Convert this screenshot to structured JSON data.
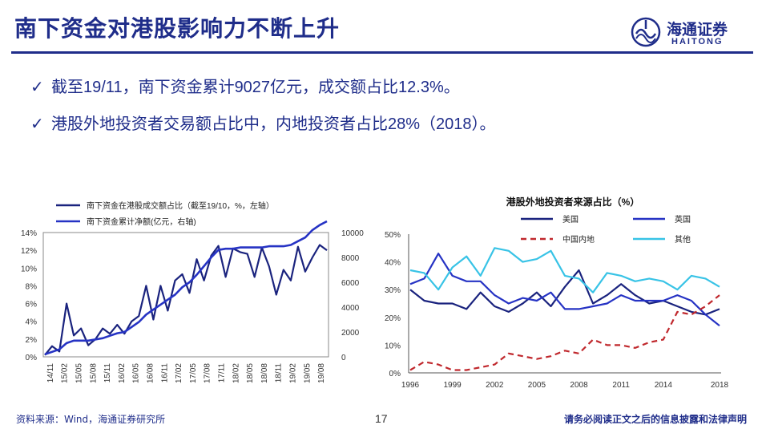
{
  "header": {
    "title": "南下资金对港股影响力不断上升",
    "logo_cn": "海通证券",
    "logo_en": "HAITONG"
  },
  "bullets": [
    {
      "mark": "✓",
      "text": "截至19/11，南下资金累计9027亿元，成交额占比12.3%。"
    },
    {
      "mark": "✓",
      "text": "港股外地投资者交易额占比中，内地投资者占比28%（2018）。"
    }
  ],
  "footer": {
    "source": "资料来源：Wind，海通证券研究所",
    "page": "17",
    "disclaimer": "请务必阅读正文之后的信息披露和法律声明"
  },
  "colors": {
    "brand": "#1f2d8a",
    "navy": "#1a237e",
    "blue": "#2633c4",
    "red": "#c0282d",
    "cyan": "#38c3e6"
  },
  "chart_data": [
    {
      "type": "line",
      "title": "",
      "x_ticks": [
        "14/11",
        "15/02",
        "15/05",
        "15/08",
        "15/11",
        "16/02",
        "16/05",
        "16/08",
        "16/11",
        "17/02",
        "17/05",
        "17/08",
        "17/11",
        "18/02",
        "18/05",
        "18/08",
        "18/11",
        "19/02",
        "19/05",
        "19/08"
      ],
      "y_left_ticks": [
        "0%",
        "2%",
        "4%",
        "6%",
        "8%",
        "10%",
        "12%",
        "14%"
      ],
      "y_right_ticks": [
        "0",
        "2000",
        "4000",
        "6000",
        "8000",
        "10000"
      ],
      "ylim_left": [
        0,
        14
      ],
      "ylim_right": [
        0,
        10000
      ],
      "legend_position": "top",
      "grid": false,
      "series": [
        {
          "name": "南下资金在港股成交额占比（截至19/10，%，左轴）",
          "axis": "left",
          "color": "#1a237e",
          "values": [
            0.2,
            1.2,
            0.6,
            6.0,
            2.4,
            3.2,
            1.3,
            2.0,
            3.2,
            2.6,
            3.6,
            2.6,
            4.0,
            4.6,
            8.0,
            4.2,
            8.0,
            5.2,
            8.6,
            9.3,
            7.2,
            11.0,
            8.6,
            11.4,
            12.5,
            9.0,
            12.2,
            11.8,
            11.6,
            9.0,
            12.3,
            10.2,
            7.0,
            9.8,
            8.6,
            12.4,
            9.6,
            11.2,
            12.6,
            12.0
          ]
        },
        {
          "name": "南下资金累计净额(亿元，右轴)",
          "axis": "right",
          "color": "#2633c4",
          "values": [
            200,
            400,
            600,
            1100,
            1300,
            1300,
            1300,
            1400,
            1500,
            1700,
            1900,
            2000,
            2400,
            2800,
            3400,
            3800,
            4200,
            4600,
            5000,
            5600,
            6000,
            6600,
            7300,
            8000,
            8600,
            8700,
            8700,
            8800,
            8800,
            8800,
            8800,
            8900,
            8900,
            8900,
            9000,
            9300,
            9600,
            10200,
            10600,
            10900
          ]
        }
      ]
    },
    {
      "type": "line",
      "title": "港股外地投资者来源占比（%）",
      "x": [
        1996,
        1997,
        1998,
        1999,
        2000,
        2001,
        2002,
        2003,
        2004,
        2005,
        2006,
        2007,
        2008,
        2009,
        2010,
        2011,
        2012,
        2013,
        2014,
        2015,
        2016,
        2017,
        2018
      ],
      "x_ticks": [
        "1996",
        "1999",
        "2002",
        "2005",
        "2008",
        "2011",
        "2014",
        "2018"
      ],
      "y_ticks": [
        "0%",
        "10%",
        "20%",
        "30%",
        "40%",
        "50%"
      ],
      "ylim": [
        0,
        50
      ],
      "legend_position": "top",
      "grid": false,
      "series": [
        {
          "name": "美国",
          "color": "#1a237e",
          "style": "solid",
          "values": [
            30,
            26,
            25,
            25,
            23,
            29,
            24,
            22,
            25,
            29,
            24,
            31,
            37,
            25,
            28,
            32,
            28,
            25,
            26,
            24,
            22,
            21,
            23
          ]
        },
        {
          "name": "英国",
          "color": "#2633c4",
          "style": "solid",
          "values": [
            32,
            34,
            43,
            35,
            33,
            33,
            28,
            25,
            27,
            26,
            29,
            23,
            23,
            24,
            25,
            28,
            26,
            26,
            26,
            28,
            26,
            21,
            17
          ]
        },
        {
          "name": "中国内地",
          "color": "#c0282d",
          "style": "dashed",
          "values": [
            1,
            4,
            3,
            1,
            1,
            2,
            3,
            7,
            6,
            5,
            6,
            8,
            7,
            12,
            10,
            10,
            9,
            11,
            12,
            22,
            21,
            24,
            28
          ]
        },
        {
          "name": "其他",
          "color": "#38c3e6",
          "style": "solid",
          "values": [
            37,
            36,
            30,
            38,
            42,
            35,
            45,
            44,
            40,
            41,
            44,
            35,
            34,
            29,
            36,
            35,
            33,
            34,
            33,
            30,
            35,
            34,
            31
          ]
        }
      ]
    }
  ]
}
